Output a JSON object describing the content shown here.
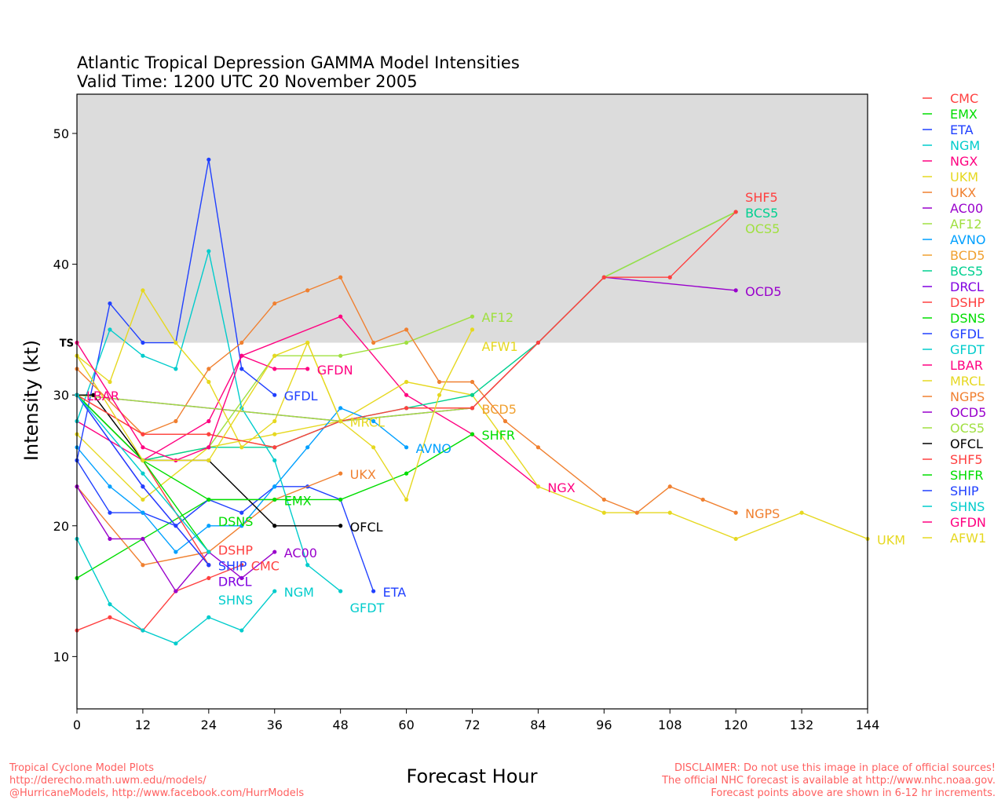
{
  "chart_data": {
    "type": "line",
    "title": "Atlantic Tropical Depression GAMMA Model Intensities",
    "subtitle": "Valid Time: 1200 UTC 20 November 2005",
    "xlabel": "Forecast Hour",
    "ylabel": "Intensity (kt)",
    "xlim": [
      0,
      144
    ],
    "ylim": [
      6,
      53
    ],
    "xticks": [
      0,
      12,
      24,
      36,
      48,
      60,
      72,
      84,
      96,
      108,
      120,
      132,
      144
    ],
    "yticks": [
      10,
      20,
      30,
      40,
      50
    ],
    "threshold": {
      "label": "TS",
      "value": 34,
      "shade_color": "#dcdcdc"
    },
    "legend_position": "right",
    "series": [
      {
        "name": "CMC",
        "color": "#ff4040",
        "points": [
          [
            0,
            12
          ],
          [
            6,
            13
          ],
          [
            12,
            12
          ],
          [
            18,
            15
          ],
          [
            24,
            16
          ],
          [
            30,
            17
          ]
        ]
      },
      {
        "name": "EMX",
        "color": "#00dd00",
        "points": [
          [
            0,
            16
          ],
          [
            12,
            19
          ],
          [
            24,
            22
          ],
          [
            36,
            22
          ]
        ]
      },
      {
        "name": "ETA",
        "color": "#2040ff",
        "points": [
          [
            0,
            25
          ],
          [
            6,
            21
          ],
          [
            12,
            21
          ],
          [
            18,
            20
          ],
          [
            24,
            22
          ],
          [
            30,
            21
          ],
          [
            36,
            23
          ],
          [
            42,
            23
          ],
          [
            48,
            22
          ],
          [
            54,
            15
          ]
        ]
      },
      {
        "name": "NGM",
        "color": "#00cccc",
        "points": [
          [
            0,
            19
          ],
          [
            6,
            14
          ],
          [
            12,
            12
          ],
          [
            18,
            11
          ],
          [
            24,
            13
          ],
          [
            30,
            12
          ],
          [
            36,
            15
          ]
        ]
      },
      {
        "name": "NGX",
        "color": "#ff0080",
        "points": [
          [
            0,
            28
          ],
          [
            12,
            25
          ],
          [
            24,
            28
          ],
          [
            30,
            33
          ],
          [
            48,
            36
          ],
          [
            60,
            30
          ],
          [
            72,
            27
          ],
          [
            84,
            23
          ]
        ]
      },
      {
        "name": "UKM",
        "color": "#e6d820",
        "points": [
          [
            0,
            27
          ],
          [
            12,
            22
          ],
          [
            24,
            26
          ],
          [
            36,
            27
          ],
          [
            48,
            28
          ],
          [
            60,
            31
          ],
          [
            72,
            30
          ],
          [
            84,
            23
          ],
          [
            96,
            21
          ],
          [
            108,
            21
          ],
          [
            120,
            19
          ],
          [
            132,
            21
          ],
          [
            144,
            19
          ]
        ]
      },
      {
        "name": "UKX",
        "color": "#f08030",
        "points": [
          [
            0,
            23
          ],
          [
            12,
            17
          ],
          [
            24,
            18
          ],
          [
            36,
            22
          ],
          [
            48,
            24
          ]
        ]
      },
      {
        "name": "AC00",
        "color": "#9900cc",
        "points": [
          [
            0,
            23
          ],
          [
            6,
            19
          ],
          [
            12,
            19
          ],
          [
            18,
            15
          ],
          [
            24,
            18
          ],
          [
            30,
            16
          ],
          [
            36,
            18
          ]
        ]
      },
      {
        "name": "AF12",
        "color": "#a0e040",
        "points": [
          [
            0,
            30
          ],
          [
            12,
            25
          ],
          [
            24,
            26
          ],
          [
            36,
            33
          ],
          [
            48,
            33
          ],
          [
            60,
            34
          ],
          [
            72,
            36
          ]
        ]
      },
      {
        "name": "AVNO",
        "color": "#00a0ff",
        "points": [
          [
            0,
            26
          ],
          [
            6,
            23
          ],
          [
            12,
            21
          ],
          [
            18,
            18
          ],
          [
            24,
            20
          ],
          [
            30,
            20
          ],
          [
            36,
            23
          ],
          [
            42,
            26
          ],
          [
            48,
            29
          ],
          [
            54,
            28
          ],
          [
            60,
            26
          ]
        ]
      },
      {
        "name": "BCD5",
        "color": "#f0a030",
        "points": [
          [
            0,
            30
          ],
          [
            12,
            27
          ],
          [
            24,
            27
          ],
          [
            36,
            26
          ],
          [
            48,
            28
          ],
          [
            60,
            29
          ],
          [
            72,
            29
          ]
        ]
      },
      {
        "name": "BCS5",
        "color": "#00d090",
        "points": [
          [
            0,
            30
          ],
          [
            12,
            25
          ],
          [
            24,
            26
          ],
          [
            36,
            26
          ],
          [
            48,
            28
          ],
          [
            60,
            29
          ],
          [
            72,
            30
          ],
          [
            84,
            34
          ],
          [
            96,
            39
          ],
          [
            120,
            44
          ]
        ]
      },
      {
        "name": "DRCL",
        "color": "#8000e0",
        "points": [
          [
            0,
            30
          ],
          [
            12,
            23
          ],
          [
            24,
            17
          ]
        ]
      },
      {
        "name": "DSHP",
        "color": "#ff4040",
        "points": [
          [
            0,
            30
          ],
          [
            12,
            25
          ],
          [
            24,
            17
          ]
        ]
      },
      {
        "name": "DSNS",
        "color": "#00dd00",
        "points": [
          [
            0,
            30
          ],
          [
            12,
            25
          ],
          [
            24,
            18
          ]
        ]
      },
      {
        "name": "GFDL",
        "color": "#2040ff",
        "points": [
          [
            0,
            25
          ],
          [
            6,
            37
          ],
          [
            12,
            34
          ],
          [
            18,
            34
          ],
          [
            24,
            48
          ],
          [
            30,
            32
          ],
          [
            36,
            30
          ]
        ]
      },
      {
        "name": "GFDT",
        "color": "#00cccc",
        "points": [
          [
            0,
            28
          ],
          [
            6,
            35
          ],
          [
            12,
            33
          ],
          [
            18,
            32
          ],
          [
            24,
            41
          ],
          [
            30,
            29
          ],
          [
            36,
            25
          ],
          [
            42,
            17
          ],
          [
            48,
            15
          ]
        ]
      },
      {
        "name": "LBAR",
        "color": "#ff0080",
        "points": [
          [
            0,
            30
          ]
        ]
      },
      {
        "name": "MRCL",
        "color": "#e6d820",
        "points": [
          [
            0,
            33
          ],
          [
            6,
            31
          ],
          [
            12,
            38
          ],
          [
            18,
            34
          ],
          [
            24,
            31
          ],
          [
            30,
            26
          ],
          [
            36,
            28
          ],
          [
            42,
            34
          ],
          [
            48,
            28
          ]
        ]
      },
      {
        "name": "NGPS",
        "color": "#f08030",
        "points": [
          [
            0,
            32
          ],
          [
            12,
            27
          ],
          [
            18,
            28
          ],
          [
            24,
            32
          ],
          [
            30,
            34
          ],
          [
            36,
            37
          ],
          [
            42,
            38
          ],
          [
            48,
            39
          ],
          [
            54,
            34
          ],
          [
            60,
            35
          ],
          [
            66,
            31
          ],
          [
            72,
            31
          ],
          [
            78,
            28
          ],
          [
            84,
            26
          ],
          [
            96,
            22
          ],
          [
            102,
            21
          ],
          [
            108,
            23
          ],
          [
            114,
            22
          ],
          [
            120,
            21
          ]
        ]
      },
      {
        "name": "OCD5",
        "color": "#9900cc",
        "points": [
          [
            0,
            30
          ],
          [
            48,
            28
          ],
          [
            72,
            29
          ],
          [
            96,
            39
          ],
          [
            120,
            38
          ]
        ]
      },
      {
        "name": "OCS5",
        "color": "#a0e040",
        "points": [
          [
            0,
            30
          ],
          [
            48,
            28
          ],
          [
            72,
            29
          ],
          [
            96,
            39
          ],
          [
            120,
            44
          ]
        ]
      },
      {
        "name": "OFCL",
        "color": "#000000",
        "points": [
          [
            0,
            30
          ],
          [
            3,
            30
          ],
          [
            12,
            25
          ],
          [
            24,
            25
          ],
          [
            36,
            20
          ],
          [
            48,
            20
          ]
        ]
      },
      {
        "name": "SHF5",
        "color": "#ff4040",
        "points": [
          [
            0,
            30
          ],
          [
            12,
            27
          ],
          [
            24,
            27
          ],
          [
            36,
            26
          ],
          [
            48,
            28
          ],
          [
            60,
            29
          ],
          [
            72,
            29
          ],
          [
            84,
            34
          ],
          [
            96,
            39
          ],
          [
            108,
            39
          ],
          [
            120,
            44
          ]
        ]
      },
      {
        "name": "SHFR",
        "color": "#00dd00",
        "points": [
          [
            0,
            30
          ],
          [
            12,
            25
          ],
          [
            24,
            22
          ],
          [
            36,
            22
          ],
          [
            48,
            22
          ],
          [
            60,
            24
          ],
          [
            72,
            27
          ]
        ]
      },
      {
        "name": "SHIP",
        "color": "#2040ff",
        "points": [
          [
            0,
            30
          ],
          [
            12,
            23
          ],
          [
            24,
            17
          ]
        ]
      },
      {
        "name": "SHNS",
        "color": "#00cccc",
        "points": [
          [
            0,
            30
          ],
          [
            12,
            24
          ],
          [
            24,
            18
          ]
        ]
      },
      {
        "name": "GFDN",
        "color": "#ff0080",
        "points": [
          [
            0,
            34
          ],
          [
            12,
            26
          ],
          [
            18,
            25
          ],
          [
            24,
            26
          ],
          [
            30,
            33
          ],
          [
            36,
            32
          ],
          [
            42,
            32
          ]
        ]
      },
      {
        "name": "AFW1",
        "color": "#e6d820",
        "points": [
          [
            0,
            33
          ],
          [
            12,
            25
          ],
          [
            24,
            25
          ],
          [
            36,
            33
          ],
          [
            42,
            34
          ],
          [
            48,
            28
          ],
          [
            54,
            26
          ],
          [
            60,
            22
          ],
          [
            66,
            30
          ],
          [
            72,
            35
          ]
        ]
      }
    ]
  },
  "footer": {
    "left": [
      "Tropical Cyclone Model Plots",
      "http://derecho.math.uwm.edu/models/",
      "@HurricaneModels, http://www.facebook.com/HurrModels"
    ],
    "right": [
      "DISCLAIMER: Do not use this image in place of official sources!",
      "The official NHC forecast is available at http://www.nhc.noaa.gov.",
      "Forecast points above are shown in 6-12 hr increments."
    ],
    "color": "#ff6060"
  }
}
